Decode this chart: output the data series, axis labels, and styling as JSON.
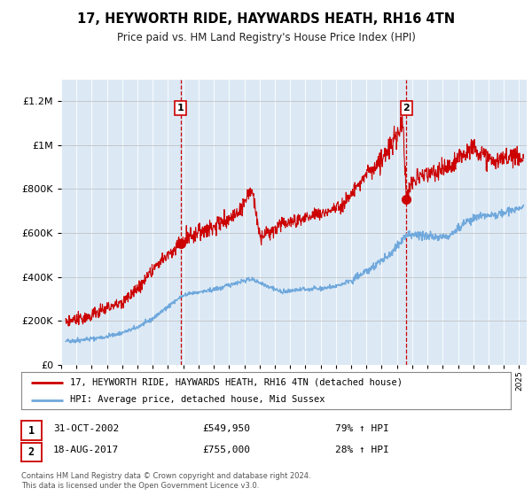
{
  "title": "17, HEYWORTH RIDE, HAYWARDS HEATH, RH16 4TN",
  "subtitle": "Price paid vs. HM Land Registry's House Price Index (HPI)",
  "ytick_values": [
    0,
    200000,
    400000,
    600000,
    800000,
    1000000,
    1200000
  ],
  "ylim": [
    0,
    1300000
  ],
  "xlim_start": 1995.0,
  "xlim_end": 2025.5,
  "background_color": "#dce9f5",
  "hpi_line_color": "#6fa8dc",
  "price_line_color": "#cc0000",
  "sale1_date": 2002.83,
  "sale1_price": 549950,
  "sale2_date": 2017.62,
  "sale2_price": 755000,
  "legend_line1": "17, HEYWORTH RIDE, HAYWARDS HEATH, RH16 4TN (detached house)",
  "legend_line2": "HPI: Average price, detached house, Mid Sussex",
  "note1_date": "31-OCT-2002",
  "note1_price": "£549,950",
  "note1_pct": "79% ↑ HPI",
  "note2_date": "18-AUG-2017",
  "note2_price": "£755,000",
  "note2_pct": "28% ↑ HPI",
  "footer": "Contains HM Land Registry data © Crown copyright and database right 2024.\nThis data is licensed under the Open Government Licence v3.0.",
  "xtick_years": [
    1995,
    1996,
    1997,
    1998,
    1999,
    2000,
    2001,
    2002,
    2003,
    2004,
    2005,
    2006,
    2007,
    2008,
    2009,
    2010,
    2011,
    2012,
    2013,
    2014,
    2015,
    2016,
    2017,
    2018,
    2019,
    2020,
    2021,
    2022,
    2023,
    2024,
    2025
  ],
  "hpi_anchors_x": [
    1995.3,
    1996.0,
    1997.0,
    1998.0,
    1999.0,
    2000.0,
    2001.0,
    2002.0,
    2002.83,
    2003.5,
    2004.5,
    2005.5,
    2006.5,
    2007.5,
    2008.5,
    2009.5,
    2010.5,
    2011.5,
    2012.5,
    2013.5,
    2014.5,
    2015.5,
    2016.5,
    2017.0,
    2017.62,
    2018.5,
    2019.5,
    2020.5,
    2021.5,
    2022.5,
    2023.5,
    2024.5,
    2025.3
  ],
  "hpi_anchors_y": [
    105000,
    110000,
    118000,
    128000,
    145000,
    170000,
    210000,
    265000,
    307235,
    325000,
    335000,
    350000,
    375000,
    390000,
    360000,
    330000,
    340000,
    345000,
    350000,
    368000,
    400000,
    450000,
    500000,
    540000,
    589844,
    590000,
    580000,
    590000,
    650000,
    680000,
    680000,
    700000,
    720000
  ],
  "price_anchors_x": [
    1995.3,
    1996.0,
    1997.0,
    1998.0,
    1999.0,
    2000.0,
    2001.0,
    2002.0,
    2002.83,
    2003.5,
    2004.5,
    2005.5,
    2006.5,
    2007.5,
    2008.0,
    2008.5,
    2009.0,
    2009.5,
    2010.5,
    2011.5,
    2012.5,
    2013.5,
    2014.5,
    2015.0,
    2015.5,
    2016.0,
    2016.5,
    2017.0,
    2017.4,
    2017.62,
    2017.8,
    2018.0,
    2018.5,
    2019.5,
    2020.5,
    2021.5,
    2022.0,
    2022.5,
    2023.0,
    2023.5,
    2024.0,
    2024.5,
    2025.3
  ],
  "price_anchors_y": [
    195000,
    205000,
    225000,
    255000,
    290000,
    340000,
    430000,
    500000,
    549950,
    590000,
    620000,
    650000,
    680000,
    800000,
    590000,
    595000,
    620000,
    640000,
    660000,
    680000,
    700000,
    730000,
    820000,
    870000,
    900000,
    940000,
    980000,
    1050000,
    1100000,
    755000,
    800000,
    830000,
    860000,
    870000,
    900000,
    970000,
    1000000,
    960000,
    930000,
    920000,
    940000,
    960000,
    940000
  ]
}
